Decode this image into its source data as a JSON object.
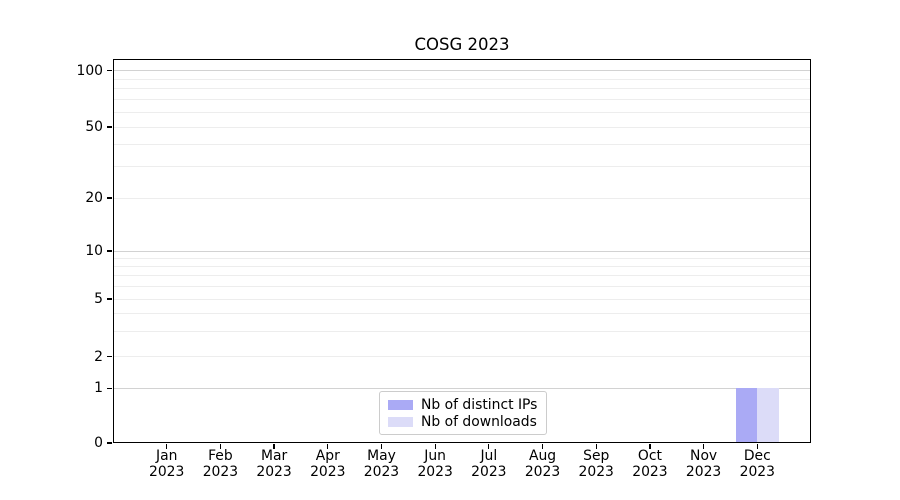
{
  "figure": {
    "background": "#ffffff"
  },
  "chart_data": {
    "type": "bar",
    "title": "COSG 2023",
    "categories": [
      "Jan 2023",
      "Feb 2023",
      "Mar 2023",
      "Apr 2023",
      "May 2023",
      "Jun 2023",
      "Jul 2023",
      "Aug 2023",
      "Sep 2023",
      "Oct 2023",
      "Nov 2023",
      "Dec 2023"
    ],
    "series": [
      {
        "name": "Nb of distinct IPs",
        "color": "#aaaaf5",
        "values": [
          0,
          0,
          0,
          0,
          0,
          0,
          0,
          0,
          0,
          0,
          0,
          1
        ]
      },
      {
        "name": "Nb of downloads",
        "color": "#dcdcf8",
        "values": [
          0,
          0,
          0,
          0,
          0,
          0,
          0,
          0,
          0,
          0,
          0,
          1
        ]
      }
    ],
    "xlabel": "",
    "ylabel": "",
    "yaxis": {
      "scale": "log above 1, linear 0-1 (symlog-like)",
      "tick_values": [
        0,
        1,
        2,
        5,
        10,
        20,
        50,
        100
      ],
      "major_gridline_values": [
        1,
        10,
        100
      ],
      "minor_gridline_values": [
        2,
        3,
        4,
        5,
        6,
        7,
        8,
        9,
        20,
        30,
        40,
        50,
        60,
        70,
        80,
        90
      ],
      "ylim": [
        0,
        117
      ]
    },
    "grid": "horizontal only",
    "legend_position": "lower center",
    "colors": {
      "major_grid": "#d2d2d2",
      "minor_grid": "#ededed",
      "axis": "#000000",
      "text": "#000000"
    }
  }
}
